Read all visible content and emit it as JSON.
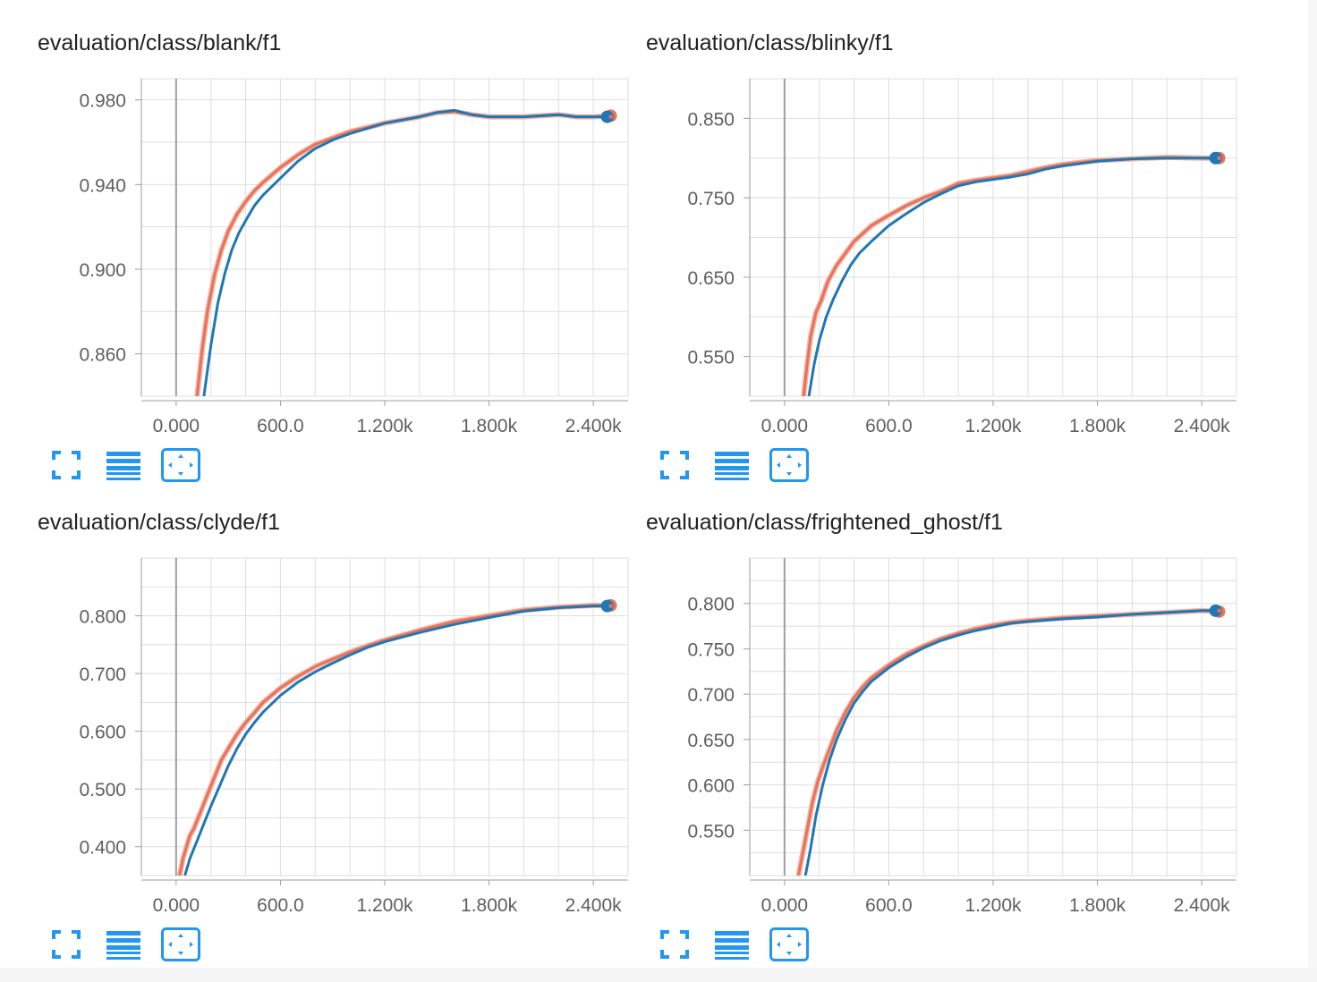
{
  "colors": {
    "orange": "#e8735a",
    "orange_light": "#f3b6a8",
    "blue": "#1f77b4",
    "grid": "#dedede",
    "axis": "#9e9e9e",
    "zero_line": "#9e9e9e",
    "tick_text": "#5f5f5f",
    "tool_blue": "#2196f3"
  },
  "toolbar_icons": {
    "fullscreen": "fullscreen-icon",
    "log_scale": "list-lines-icon",
    "fit_domain": "fit-domain-icon"
  },
  "charts": [
    {
      "title": "evaluation/class/blank/f1",
      "chart_data": {
        "type": "line",
        "title": "evaluation/class/blank/f1",
        "xlim": [
          -200,
          2600
        ],
        "ylim": [
          0.84,
          0.99
        ],
        "x_ticks": [
          0,
          600,
          1200,
          1800,
          2400
        ],
        "x_tick_labels": [
          "0.000",
          "600.0",
          "1.200k",
          "1.800k",
          "2.400k"
        ],
        "y_ticks": [
          0.86,
          0.9,
          0.94,
          0.98
        ],
        "y_tick_labels": [
          "0.860",
          "0.900",
          "0.940",
          "0.980"
        ],
        "grid": true,
        "series": [
          {
            "color_key": "orange",
            "x": [
              120,
              150,
              180,
              220,
              260,
              300,
              350,
              400,
              450,
              500,
              600,
              700,
              800,
              900,
              1000,
              1200,
              1400,
              1500,
              1600,
              1700,
              1800,
              2000,
              2200,
              2300,
              2400,
              2500
            ],
            "y": [
              0.84,
              0.862,
              0.88,
              0.897,
              0.909,
              0.918,
              0.926,
              0.932,
              0.937,
              0.941,
              0.948,
              0.954,
              0.959,
              0.962,
              0.965,
              0.969,
              0.972,
              0.974,
              0.9745,
              0.973,
              0.972,
              0.972,
              0.973,
              0.972,
              0.972,
              0.9725
            ]
          },
          {
            "color_key": "blue",
            "x": [
              160,
              200,
              240,
              280,
              320,
              360,
              400,
              450,
              500,
              600,
              700,
              800,
              900,
              1000,
              1200,
              1400,
              1500,
              1600,
              1700,
              1800,
              2000,
              2200,
              2300,
              2400,
              2480
            ],
            "y": [
              0.84,
              0.864,
              0.884,
              0.898,
              0.909,
              0.917,
              0.923,
              0.93,
              0.935,
              0.943,
              0.951,
              0.957,
              0.961,
              0.964,
              0.969,
              0.972,
              0.974,
              0.975,
              0.973,
              0.972,
              0.972,
              0.973,
              0.972,
              0.972,
              0.972
            ]
          }
        ]
      }
    },
    {
      "title": "evaluation/class/blinky/f1",
      "chart_data": {
        "type": "line",
        "title": "evaluation/class/blinky/f1",
        "xlim": [
          -200,
          2600
        ],
        "ylim": [
          0.5,
          0.9
        ],
        "x_ticks": [
          0,
          600,
          1200,
          1800,
          2400
        ],
        "x_tick_labels": [
          "0.000",
          "600.0",
          "1.200k",
          "1.800k",
          "2.400k"
        ],
        "y_ticks": [
          0.55,
          0.65,
          0.75,
          0.85
        ],
        "y_tick_labels": [
          "0.550",
          "0.650",
          "0.750",
          "0.850"
        ],
        "grid": true,
        "series": [
          {
            "color_key": "orange",
            "x": [
              110,
              130,
              150,
              180,
              210,
              250,
              300,
              350,
              400,
              450,
              500,
              600,
              700,
              800,
              900,
              1000,
              1100,
              1200,
              1300,
              1400,
              1500,
              1600,
              1800,
              2000,
              2200,
              2400,
              2500
            ],
            "y": [
              0.5,
              0.54,
              0.575,
              0.605,
              0.62,
              0.645,
              0.665,
              0.68,
              0.695,
              0.705,
              0.715,
              0.728,
              0.74,
              0.75,
              0.758,
              0.768,
              0.772,
              0.775,
              0.778,
              0.783,
              0.788,
              0.792,
              0.797,
              0.799,
              0.801,
              0.8,
              0.8
            ]
          },
          {
            "color_key": "blue",
            "x": [
              140,
              170,
              200,
              240,
              280,
              330,
              380,
              430,
              500,
              600,
              700,
              800,
              900,
              1000,
              1100,
              1200,
              1300,
              1400,
              1500,
              1600,
              1800,
              2000,
              2200,
              2400,
              2480
            ],
            "y": [
              0.5,
              0.54,
              0.57,
              0.6,
              0.622,
              0.645,
              0.665,
              0.68,
              0.695,
              0.715,
              0.73,
              0.744,
              0.755,
              0.765,
              0.77,
              0.773,
              0.776,
              0.78,
              0.786,
              0.79,
              0.796,
              0.799,
              0.8,
              0.8,
              0.8
            ]
          }
        ]
      }
    },
    {
      "title": "evaluation/class/clyde/f1",
      "chart_data": {
        "type": "line",
        "title": "evaluation/class/clyde/f1",
        "xlim": [
          -200,
          2600
        ],
        "ylim": [
          0.35,
          0.9
        ],
        "x_ticks": [
          0,
          600,
          1200,
          1800,
          2400
        ],
        "x_tick_labels": [
          "0.000",
          "600.0",
          "1.200k",
          "1.800k",
          "2.400k"
        ],
        "y_ticks": [
          0.4,
          0.5,
          0.6,
          0.7,
          0.8
        ],
        "y_tick_labels": [
          "0.400",
          "0.500",
          "0.600",
          "0.700",
          "0.800"
        ],
        "grid": true,
        "series": [
          {
            "color_key": "orange",
            "x": [
              20,
              40,
              60,
              80,
              100,
              140,
              180,
              220,
              260,
              300,
              350,
              400,
              450,
              500,
              600,
              700,
              800,
              900,
              1000,
              1100,
              1200,
              1400,
              1600,
              1800,
              2000,
              2200,
              2400,
              2500
            ],
            "y": [
              0.35,
              0.38,
              0.4,
              0.42,
              0.43,
              0.46,
              0.49,
              0.52,
              0.55,
              0.57,
              0.595,
              0.615,
              0.632,
              0.65,
              0.675,
              0.695,
              0.712,
              0.725,
              0.737,
              0.748,
              0.758,
              0.775,
              0.79,
              0.8,
              0.81,
              0.815,
              0.818,
              0.818
            ]
          },
          {
            "color_key": "blue",
            "x": [
              50,
              80,
              120,
              160,
              200,
              250,
              300,
              350,
              400,
              450,
              500,
              600,
              700,
              800,
              900,
              1000,
              1100,
              1200,
              1400,
              1600,
              1800,
              2000,
              2200,
              2400,
              2480
            ],
            "y": [
              0.35,
              0.38,
              0.41,
              0.44,
              0.47,
              0.505,
              0.54,
              0.57,
              0.595,
              0.615,
              0.633,
              0.662,
              0.685,
              0.703,
              0.718,
              0.732,
              0.745,
              0.755,
              0.771,
              0.785,
              0.797,
              0.808,
              0.814,
              0.817,
              0.817
            ]
          }
        ]
      }
    },
    {
      "title": "evaluation/class/frightened_ghost/f1",
      "chart_data": {
        "type": "line",
        "title": "evaluation/class/frightened_ghost/f1",
        "xlim": [
          -200,
          2600
        ],
        "ylim": [
          0.5,
          0.85
        ],
        "x_ticks": [
          0,
          600,
          1200,
          1800,
          2400
        ],
        "x_tick_labels": [
          "0.000",
          "600.0",
          "1.200k",
          "1.800k",
          "2.400k"
        ],
        "y_ticks": [
          0.55,
          0.6,
          0.65,
          0.7,
          0.75,
          0.8
        ],
        "y_tick_labels": [
          "0.550",
          "0.600",
          "0.650",
          "0.700",
          "0.750",
          "0.800"
        ],
        "grid": true,
        "series": [
          {
            "color_key": "orange",
            "x": [
              80,
              100,
              130,
              160,
              190,
              220,
              260,
              300,
              350,
              400,
              450,
              500,
              600,
              700,
              800,
              900,
              1000,
              1100,
              1200,
              1300,
              1400,
              1600,
              1800,
              2000,
              2200,
              2400,
              2500
            ],
            "y": [
              0.5,
              0.52,
              0.55,
              0.58,
              0.603,
              0.62,
              0.64,
              0.66,
              0.68,
              0.696,
              0.708,
              0.718,
              0.732,
              0.744,
              0.753,
              0.761,
              0.767,
              0.772,
              0.776,
              0.779,
              0.781,
              0.784,
              0.786,
              0.788,
              0.79,
              0.792,
              0.791
            ]
          },
          {
            "color_key": "blue",
            "x": [
              120,
              150,
              180,
              220,
              260,
              300,
              350,
              400,
              450,
              500,
              600,
              700,
              800,
              900,
              1000,
              1100,
              1200,
              1300,
              1400,
              1600,
              1800,
              2000,
              2200,
              2400,
              2480
            ],
            "y": [
              0.5,
              0.53,
              0.565,
              0.6,
              0.628,
              0.65,
              0.672,
              0.69,
              0.703,
              0.714,
              0.729,
              0.741,
              0.751,
              0.759,
              0.765,
              0.77,
              0.774,
              0.778,
              0.78,
              0.783,
              0.785,
              0.788,
              0.79,
              0.792,
              0.792
            ]
          }
        ]
      }
    }
  ]
}
